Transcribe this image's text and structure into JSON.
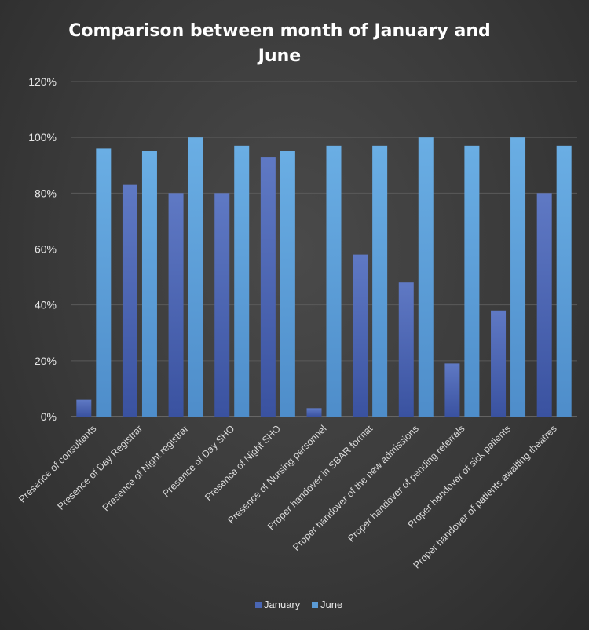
{
  "chart_data": {
    "type": "bar",
    "title_lines": [
      "Comparison between month of January and",
      "June"
    ],
    "categories": [
      "Presence of consultants",
      "Presence of Day Registrar",
      "Presence of Night registrar",
      "Presence of Day SHO",
      "Presence of Night SHO",
      "Presence of Nursing personnel",
      "Proper handover in SBAR format",
      "Proper handover of the new admissions",
      "Proper handover of pending referrals",
      "Proper handover of sick patients",
      "Proper handover of patients awaiting theatres"
    ],
    "series": [
      {
        "name": "January",
        "color": "#4a66b3",
        "values": [
          6,
          83,
          80,
          80,
          93,
          3,
          58,
          48,
          19,
          38,
          80
        ]
      },
      {
        "name": "June",
        "color": "#5b9bd5",
        "values": [
          96,
          95,
          100,
          97,
          95,
          97,
          97,
          100,
          97,
          100,
          97
        ]
      }
    ],
    "yticks": [
      "0%",
      "20%",
      "40%",
      "60%",
      "80%",
      "100%",
      "120%"
    ],
    "ylim": [
      0,
      120
    ],
    "xlabel": "",
    "ylabel": "",
    "grid": true,
    "legend_position": "bottom"
  }
}
